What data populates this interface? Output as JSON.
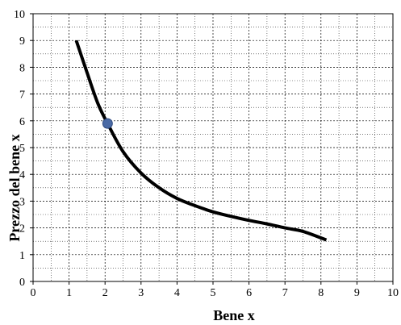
{
  "chart_data": {
    "type": "line",
    "title": "",
    "xlabel": "Bene x",
    "ylabel": "Prezzo del bene x",
    "xlim": [
      0,
      10
    ],
    "ylim": [
      0,
      10
    ],
    "xticks": [
      0,
      1,
      2,
      3,
      4,
      5,
      6,
      7,
      8,
      9,
      10
    ],
    "yticks": [
      0,
      1,
      2,
      3,
      4,
      5,
      6,
      7,
      8,
      9,
      10
    ],
    "grid": true,
    "series": [
      {
        "x": [
          1.2,
          1.5,
          1.8,
          2.07,
          2.5,
          3.0,
          3.5,
          4.0,
          4.5,
          5.0,
          5.5,
          6.0,
          6.5,
          7.0,
          7.5,
          8.15
        ],
        "y": [
          9.0,
          7.8,
          6.65,
          5.9,
          4.85,
          4.05,
          3.5,
          3.1,
          2.83,
          2.6,
          2.43,
          2.28,
          2.15,
          2.0,
          1.87,
          1.55
        ],
        "color": "#000000"
      }
    ],
    "points": [
      {
        "x": 2.07,
        "y": 5.9,
        "color": "#4a6aa5"
      }
    ]
  }
}
